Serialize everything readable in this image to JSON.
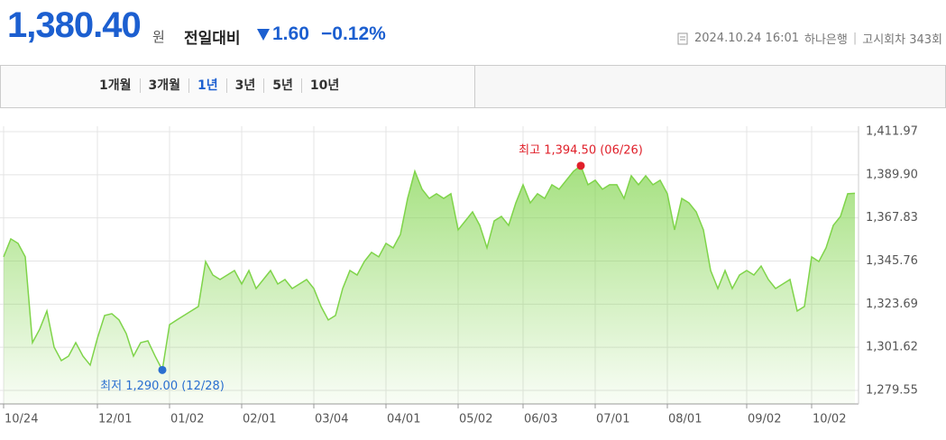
{
  "header": {
    "price": "1,380.40",
    "unit": "원",
    "change_label": "전일대비",
    "change": "1.60",
    "change_rate": "−0.12%",
    "datetime": "2024.10.24 16:01",
    "bank": "하나은행",
    "round": "고시회차 343회"
  },
  "tabs": [
    "1개월",
    "3개월",
    "1년",
    "3년",
    "5년",
    "10년"
  ],
  "chart_data": {
    "type": "area",
    "categories": [
      "10/24",
      null,
      null,
      null,
      null,
      null,
      null,
      null,
      null,
      null,
      null,
      null,
      null,
      "12/01",
      null,
      null,
      null,
      null,
      null,
      null,
      null,
      null,
      null,
      "01/02",
      null,
      null,
      null,
      null,
      null,
      null,
      null,
      null,
      null,
      "02/01",
      null,
      null,
      null,
      null,
      null,
      null,
      null,
      null,
      null,
      "03/04",
      null,
      null,
      null,
      null,
      null,
      null,
      null,
      null,
      null,
      "04/01",
      null,
      null,
      null,
      null,
      null,
      null,
      null,
      null,
      null,
      "05/02",
      null,
      null,
      null,
      null,
      null,
      null,
      null,
      null,
      "06/03",
      null,
      null,
      null,
      null,
      null,
      null,
      null,
      null,
      null,
      "07/01",
      null,
      null,
      null,
      null,
      null,
      null,
      null,
      null,
      null,
      "08/01",
      null,
      null,
      null,
      null,
      null,
      null,
      null,
      null,
      null,
      null,
      "09/02",
      null,
      null,
      null,
      null,
      null,
      null,
      null,
      null,
      "10/02",
      null,
      null,
      null,
      null,
      null,
      null
    ],
    "values": [
      1347.9,
      1357.1,
      1354.8,
      1347.9,
      1304.0,
      1310.9,
      1320.2,
      1301.7,
      1294.8,
      1297.1,
      1304.0,
      1297.1,
      1292.5,
      1306.3,
      1317.9,
      1318.8,
      1315.6,
      1308.6,
      1297.1,
      1304.0,
      1304.9,
      1297.1,
      1290.0,
      1313.2,
      1315.6,
      1317.9,
      1320.2,
      1322.5,
      1345.5,
      1338.6,
      1336.3,
      1338.6,
      1340.9,
      1334.0,
      1340.9,
      1331.7,
      1336.3,
      1340.9,
      1334.0,
      1336.3,
      1331.7,
      1334.0,
      1336.3,
      1331.7,
      1322.5,
      1315.6,
      1317.9,
      1331.7,
      1340.9,
      1338.6,
      1345.5,
      1350.2,
      1347.9,
      1354.8,
      1352.5,
      1359.4,
      1377.8,
      1391.7,
      1382.5,
      1377.8,
      1380.2,
      1377.8,
      1380.2,
      1361.7,
      1366.3,
      1370.9,
      1364.0,
      1352.5,
      1366.3,
      1368.6,
      1364.0,
      1375.5,
      1384.8,
      1375.5,
      1380.2,
      1377.8,
      1384.8,
      1382.5,
      1387.1,
      1391.7,
      1394.5,
      1384.8,
      1387.1,
      1382.5,
      1384.8,
      1384.8,
      1377.8,
      1389.4,
      1384.8,
      1389.4,
      1384.8,
      1387.1,
      1380.2,
      1361.7,
      1377.8,
      1375.5,
      1370.9,
      1361.7,
      1340.9,
      1331.7,
      1340.9,
      1331.7,
      1338.6,
      1340.9,
      1338.6,
      1343.2,
      1336.3,
      1331.7,
      1334.0,
      1336.3,
      1320.2,
      1322.5,
      1347.9,
      1345.5,
      1352.5,
      1364.0,
      1368.6,
      1380.2,
      1380.4
    ],
    "color": "#7fd44a",
    "max_label": "최고 1,394.50 (06/26)",
    "max_color": "#e0202a",
    "min_label": "최저 1,290.00 (12/28)",
    "min_color": "#2a6fd0",
    "ylim": [
      1279.55,
      1411.97
    ],
    "yticks": [
      {
        "value": 1279.55,
        "label": "1,279.55"
      },
      {
        "value": 1301.62,
        "label": "1,301.62"
      },
      {
        "value": 1323.69,
        "label": "1,323.69"
      },
      {
        "value": 1345.76,
        "label": "1,345.76"
      },
      {
        "value": 1367.83,
        "label": "1,367.83"
      },
      {
        "value": 1389.9,
        "label": "1,389.90"
      },
      {
        "value": 1411.97,
        "label": "1,411.97"
      }
    ],
    "grid": true
  }
}
